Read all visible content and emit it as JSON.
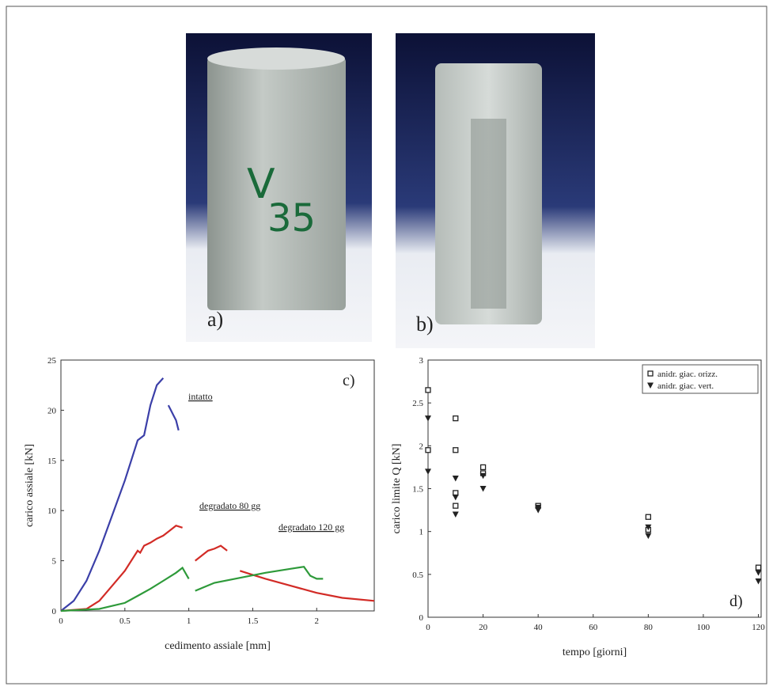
{
  "panels": {
    "a": "a)",
    "b": "b)"
  },
  "chart_data": [
    {
      "type": "line",
      "label": "c)",
      "x_label": "cedimento assiale [mm]",
      "y_label": "carico assiale [kN]",
      "annotations": [
        "intatto",
        "degradato 80 gg",
        "degradato 120 gg"
      ],
      "xlim": [
        0,
        2.45
      ],
      "xticks": [
        0,
        0.5,
        1,
        1.5,
        2
      ],
      "ylim": [
        0,
        25
      ],
      "yticks": [
        0,
        5,
        10,
        15,
        20,
        25
      ],
      "series": [
        {
          "color": "#3b3fa8",
          "x": [
            0,
            0.1,
            0.2,
            0.3,
            0.4,
            0.5,
            0.6,
            0.65,
            0.7,
            0.75,
            0.8,
            null,
            0.84,
            0.86,
            0.88,
            0.9,
            0.92
          ],
          "values": [
            0,
            1,
            3,
            6,
            9.5,
            13,
            17,
            17.5,
            20.5,
            22.5,
            23.2,
            null,
            20.5,
            20,
            19.5,
            19,
            18
          ]
        },
        {
          "color": "#d22b26",
          "x": [
            0,
            0.2,
            0.3,
            0.4,
            0.5,
            0.6,
            0.62,
            0.65,
            0.7,
            0.75,
            0.8,
            0.85,
            0.9,
            0.95,
            null,
            1.05,
            1.1,
            1.15,
            1.2,
            1.25,
            1.3,
            null,
            1.4,
            1.5,
            1.6,
            1.8,
            2.0,
            2.2,
            2.45
          ],
          "values": [
            0,
            0.2,
            1,
            2.5,
            4,
            6,
            5.8,
            6.5,
            6.8,
            7.2,
            7.5,
            8,
            8.5,
            8.3,
            null,
            5,
            5.5,
            6,
            6.2,
            6.5,
            6,
            null,
            4,
            3.6,
            3.2,
            2.5,
            1.8,
            1.3,
            1
          ]
        },
        {
          "color": "#2e9a3a",
          "x": [
            0,
            0.3,
            0.5,
            0.6,
            0.7,
            0.8,
            0.9,
            0.95,
            1.0,
            null,
            1.05,
            1.2,
            1.4,
            1.6,
            1.8,
            1.9,
            1.95,
            2.0,
            2.05
          ],
          "values": [
            0,
            0.2,
            0.8,
            1.5,
            2.2,
            3,
            3.8,
            4.3,
            3.2,
            null,
            2,
            2.8,
            3.3,
            3.8,
            4.2,
            4.4,
            3.5,
            3.2,
            3.2
          ]
        }
      ]
    },
    {
      "type": "scatter",
      "label": "d)",
      "x_label": "tempo [giorni]",
      "y_label": "carico limite Q [kN]",
      "xlim": [
        0,
        121
      ],
      "xticks": [
        0,
        20,
        40,
        60,
        80,
        100,
        120
      ],
      "ylim": [
        0,
        3
      ],
      "yticks": [
        0,
        0.5,
        1,
        1.5,
        2,
        2.5,
        3
      ],
      "legend": "upper-right",
      "series": [
        {
          "name": "anidr. giac. orizz.",
          "marker": "square",
          "color": "#222222",
          "x": [
            0,
            0,
            10,
            10,
            10,
            10,
            20,
            20,
            40,
            80,
            80,
            120
          ],
          "values": [
            2.65,
            1.95,
            2.32,
            1.95,
            1.45,
            1.3,
            1.75,
            1.68,
            1.3,
            1.17,
            1.02,
            0.58
          ]
        },
        {
          "name": "anidr. giac. vert.",
          "marker": "triangle",
          "color": "#222222",
          "x": [
            0,
            0,
            10,
            10,
            10,
            20,
            20,
            40,
            40,
            80,
            80,
            120,
            120
          ],
          "values": [
            2.32,
            1.7,
            1.62,
            1.4,
            1.2,
            1.65,
            1.5,
            1.28,
            1.25,
            1.05,
            0.95,
            0.52,
            0.42
          ]
        }
      ]
    }
  ]
}
